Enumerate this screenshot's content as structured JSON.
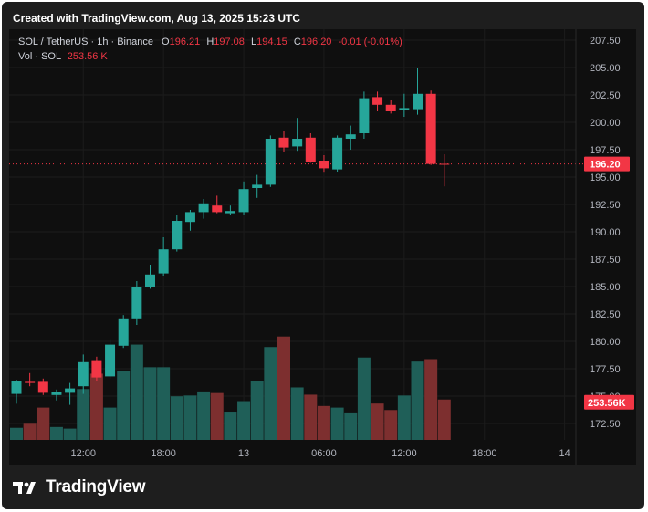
{
  "header": {
    "title": "Created with TradingView.com, Aug 13, 2025 15:23 UTC"
  },
  "legend": {
    "symbol": "SOL / TetherUS · 1h · Binance",
    "o_label": "O",
    "o_value": "196.21",
    "h_label": "H",
    "h_value": "197.08",
    "l_label": "L",
    "l_value": "194.15",
    "c_label": "C",
    "c_value": "196.20",
    "change": "-0.01 (-0.01%)",
    "vol_label": "Vol · SOL",
    "vol_value": "253.56 K"
  },
  "branding": {
    "text": "TradingView"
  },
  "colors": {
    "up": "#26a69a",
    "down": "#f23645",
    "vol_up": "#1f5f58",
    "vol_down": "#7d2f2f",
    "background": "#0f0f0f",
    "frame": "#1e1e1e",
    "grid": "#1c1c1c"
  },
  "chart_data": {
    "type": "candlestick",
    "title": "SOL / TetherUS · 1h · Binance",
    "x_ticks": [
      "12:00",
      "18:00",
      "13",
      "06:00",
      "12:00",
      "18:00",
      "14"
    ],
    "y_ticks": [
      "172.50",
      "175.00",
      "177.50",
      "180.00",
      "182.50",
      "185.00",
      "187.50",
      "190.00",
      "192.50",
      "195.00",
      "197.50",
      "200.00",
      "202.50",
      "205.00",
      "207.50"
    ],
    "ylim": [
      171,
      208.5
    ],
    "last_price_label": "196.20",
    "last_volume_label": "253.56K",
    "grid": true,
    "series": [
      {
        "o": 175.2,
        "h": 176.5,
        "l": 174.3,
        "c": 176.4,
        "v": 1.5
      },
      {
        "o": 176.3,
        "h": 177.1,
        "l": 175.9,
        "c": 176.2,
        "v": 2.0
      },
      {
        "o": 176.3,
        "h": 176.6,
        "l": 175.1,
        "c": 175.3,
        "v": 4.0
      },
      {
        "o": 175.1,
        "h": 175.6,
        "l": 174.6,
        "c": 175.4,
        "v": 1.6
      },
      {
        "o": 175.3,
        "h": 176.2,
        "l": 174.2,
        "c": 175.7,
        "v": 1.4
      },
      {
        "o": 175.9,
        "h": 178.8,
        "l": 175.2,
        "c": 178.1,
        "v": 6.3
      },
      {
        "o": 178.2,
        "h": 178.6,
        "l": 176.4,
        "c": 176.7,
        "v": 8.2
      },
      {
        "o": 176.8,
        "h": 180.2,
        "l": 176.6,
        "c": 179.7,
        "v": 4.0
      },
      {
        "o": 179.6,
        "h": 182.4,
        "l": 179.4,
        "c": 182.1,
        "v": 8.5
      },
      {
        "o": 182.1,
        "h": 185.5,
        "l": 181.5,
        "c": 185.0,
        "v": 11.8
      },
      {
        "o": 185.0,
        "h": 187.0,
        "l": 184.8,
        "c": 186.1,
        "v": 9.0
      },
      {
        "o": 186.2,
        "h": 189.5,
        "l": 186.0,
        "c": 188.4,
        "v": 9.0
      },
      {
        "o": 188.4,
        "h": 191.5,
        "l": 188.2,
        "c": 191.0,
        "v": 5.4
      },
      {
        "o": 190.9,
        "h": 192.0,
        "l": 190.1,
        "c": 191.8,
        "v": 5.5
      },
      {
        "o": 191.8,
        "h": 193.0,
        "l": 191.2,
        "c": 192.6,
        "v": 6.0
      },
      {
        "o": 192.4,
        "h": 193.3,
        "l": 191.7,
        "c": 191.8,
        "v": 5.8
      },
      {
        "o": 191.7,
        "h": 192.4,
        "l": 191.5,
        "c": 191.9,
        "v": 3.5
      },
      {
        "o": 191.8,
        "h": 194.6,
        "l": 191.5,
        "c": 193.9,
        "v": 4.8
      },
      {
        "o": 194.0,
        "h": 195.2,
        "l": 193.1,
        "c": 194.3,
        "v": 7.3
      },
      {
        "o": 194.3,
        "h": 198.8,
        "l": 194.1,
        "c": 198.5,
        "v": 11.5
      },
      {
        "o": 198.6,
        "h": 199.2,
        "l": 197.3,
        "c": 197.7,
        "v": 12.8
      },
      {
        "o": 197.8,
        "h": 200.4,
        "l": 197.4,
        "c": 198.5,
        "v": 6.5
      },
      {
        "o": 198.6,
        "h": 199.0,
        "l": 196.3,
        "c": 196.4,
        "v": 5.6
      },
      {
        "o": 196.5,
        "h": 197.0,
        "l": 195.4,
        "c": 195.8,
        "v": 4.2
      },
      {
        "o": 195.7,
        "h": 198.8,
        "l": 195.5,
        "c": 198.6,
        "v": 4.0
      },
      {
        "o": 198.5,
        "h": 199.7,
        "l": 197.5,
        "c": 198.9,
        "v": 3.4
      },
      {
        "o": 199.0,
        "h": 202.8,
        "l": 198.5,
        "c": 202.2,
        "v": 10.2
      },
      {
        "o": 202.3,
        "h": 202.8,
        "l": 201.0,
        "c": 201.6,
        "v": 4.5
      },
      {
        "o": 201.6,
        "h": 202.0,
        "l": 200.8,
        "c": 201.0,
        "v": 3.7
      },
      {
        "o": 201.1,
        "h": 202.6,
        "l": 200.5,
        "c": 201.3,
        "v": 5.5
      },
      {
        "o": 201.2,
        "h": 205.0,
        "l": 200.7,
        "c": 202.6,
        "v": 9.7
      },
      {
        "o": 202.6,
        "h": 202.9,
        "l": 196.1,
        "c": 196.2,
        "v": 10.0
      },
      {
        "o": 196.21,
        "h": 197.08,
        "l": 194.15,
        "c": 196.2,
        "v": 5.0
      }
    ]
  }
}
